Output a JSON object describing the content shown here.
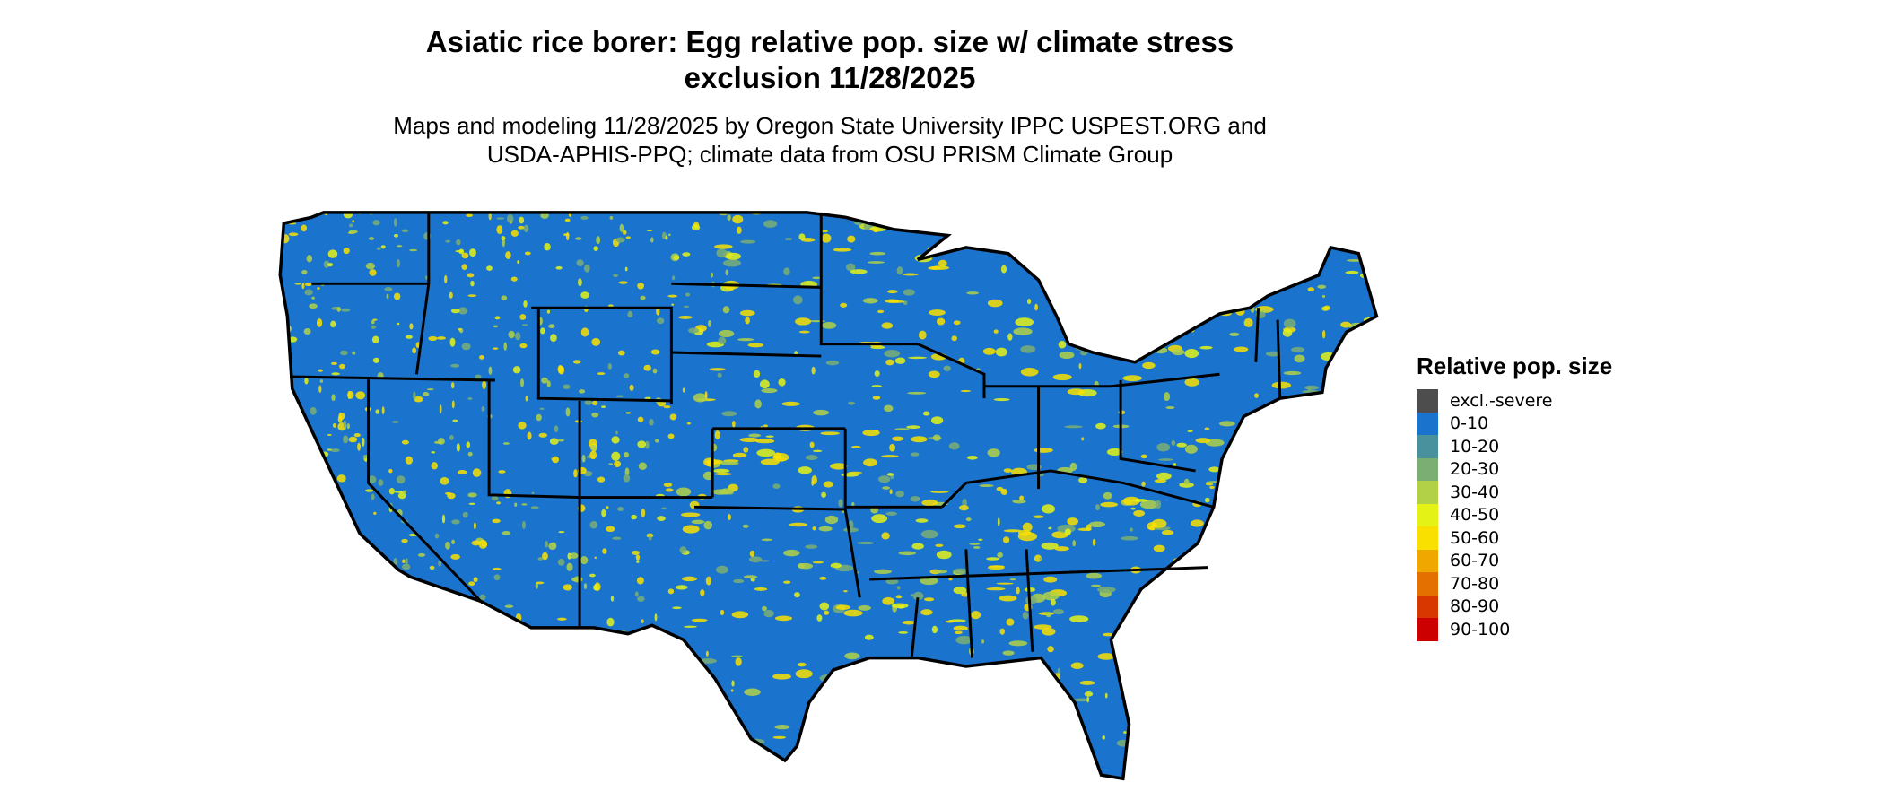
{
  "title": {
    "line1": "Asiatic rice borer: Egg relative pop. size w/ climate stress",
    "line2": "exclusion 11/28/2025"
  },
  "subtitle": {
    "line1": "Maps and modeling 11/28/2025 by Oregon State University IPPC USPEST.ORG and",
    "line2": "USDA-APHIS-PPQ; climate data from OSU PRISM Climate Group"
  },
  "legend": {
    "title": "Relative pop. size",
    "items": [
      {
        "label": "excl.-severe",
        "color": "#4d4d4d"
      },
      {
        "label": "0-10",
        "color": "#1a73cc"
      },
      {
        "label": "10-20",
        "color": "#4a919e"
      },
      {
        "label": "20-30",
        "color": "#7bae73"
      },
      {
        "label": "30-40",
        "color": "#b2d147"
      },
      {
        "label": "40-50",
        "color": "#e4f216"
      },
      {
        "label": "50-60",
        "color": "#fae000"
      },
      {
        "label": "60-70",
        "color": "#f0a800"
      },
      {
        "label": "70-80",
        "color": "#e47000"
      },
      {
        "label": "80-90",
        "color": "#d83800"
      },
      {
        "label": "90-100",
        "color": "#cc0000"
      }
    ]
  },
  "map": {
    "region": "contiguous United States",
    "dominant_class": "0-10",
    "secondary_classes": [
      "40-50",
      "50-60"
    ]
  }
}
